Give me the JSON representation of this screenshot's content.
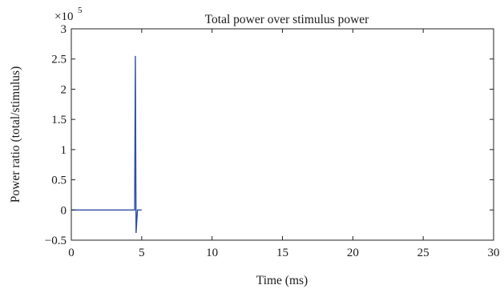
{
  "chart_data": {
    "type": "line",
    "title": "Total power over stimulus power",
    "xlabel": "Time (ms)",
    "ylabel": "Power ratio (total/stimulus)",
    "y_exponent_label": "×10",
    "y_exponent_power": "5",
    "xlim": [
      0,
      30
    ],
    "ylim": [
      -0.5,
      3
    ],
    "x_ticks": [
      "0",
      "5",
      "10",
      "15",
      "20",
      "25",
      "30"
    ],
    "y_ticks": [
      "−0.5",
      "0",
      "0.5",
      "1",
      "1.5",
      "2",
      "2.5",
      "3"
    ],
    "y_scale_factor": 100000,
    "grid": false,
    "series": [
      {
        "color": "#2f4ea3",
        "x": [
          0,
          4.5,
          4.55,
          4.6,
          4.7,
          5.0
        ],
        "y": [
          0,
          0,
          2.55,
          -0.38,
          0,
          0
        ]
      }
    ]
  }
}
